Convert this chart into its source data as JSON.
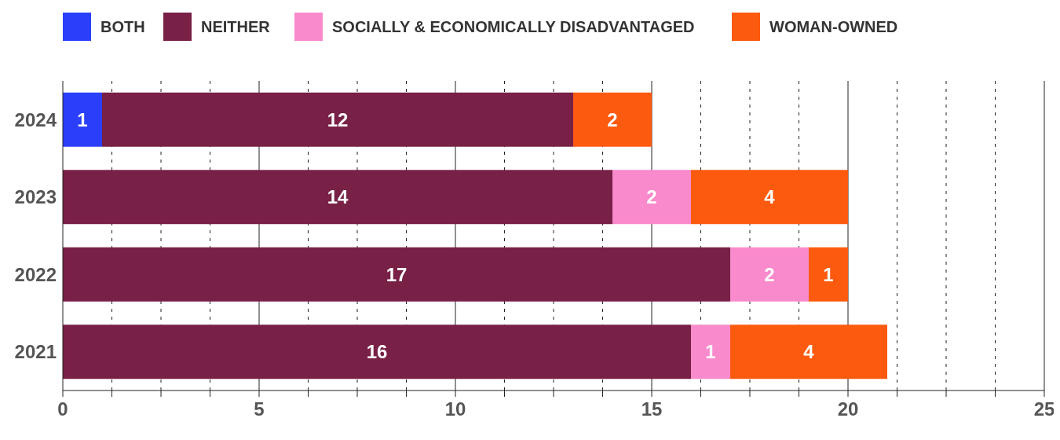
{
  "chart_data": {
    "type": "bar",
    "orientation": "horizontal",
    "stacked": true,
    "categories": [
      "2024",
      "2023",
      "2022",
      "2021"
    ],
    "series": [
      {
        "name": "BOTH",
        "color": "#2b3ffb",
        "values": [
          1,
          null,
          null,
          null
        ]
      },
      {
        "name": "NEITHER",
        "color": "#782046",
        "values": [
          12,
          14,
          17,
          16
        ]
      },
      {
        "name": "SOCIALLY & ECONOMICALLY DISADVANTAGED",
        "color": "#f98acc",
        "values": [
          null,
          2,
          2,
          1
        ]
      },
      {
        "name": "WOMAN-OWNED",
        "color": "#fc5a0e",
        "values": [
          2,
          4,
          1,
          4
        ]
      }
    ],
    "xlim": [
      0,
      25
    ],
    "xticks": [
      0,
      {
        "value": 1.25,
        "label": null
      },
      {
        "value": 2.5,
        "label": null
      },
      {
        "value": 3.75,
        "label": null
      },
      5,
      {
        "value": 6.25,
        "label": null
      },
      {
        "value": 7.5,
        "label": null
      },
      {
        "value": 8.75,
        "label": null
      },
      10,
      {
        "value": 11.25,
        "label": null
      },
      {
        "value": 12.5,
        "label": null
      },
      {
        "value": 13.75,
        "label": null
      },
      15,
      {
        "value": 16.25,
        "label": null
      },
      {
        "value": 17.5,
        "label": null
      },
      {
        "value": 18.75,
        "label": null
      },
      20,
      {
        "value": 21.25,
        "label": null
      },
      {
        "value": 22.5,
        "label": null
      },
      {
        "value": 23.75,
        "label": null
      },
      25
    ],
    "grid": "x",
    "legend": "top left",
    "data_labels": true
  }
}
